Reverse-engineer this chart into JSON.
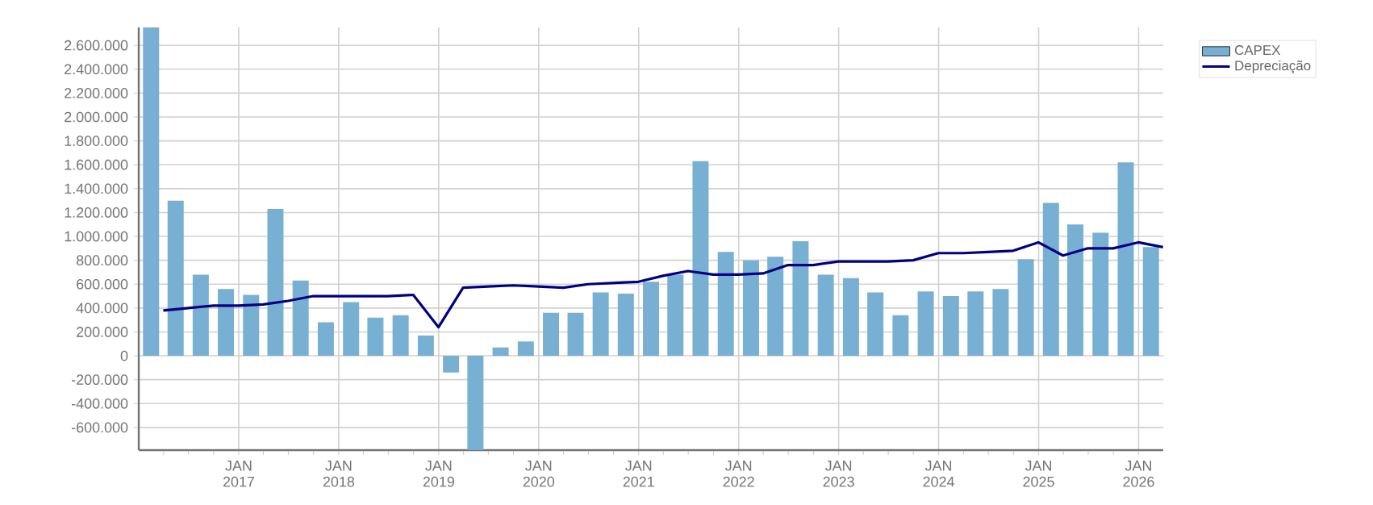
{
  "chart_data": {
    "type": "bar",
    "xlim": [
      "2016-01-01",
      "2026-04-01"
    ],
    "ylim": [
      -790000,
      2750000
    ],
    "yticks": [
      {
        "value": -600000,
        "label": "-600.000"
      },
      {
        "value": -400000,
        "label": "-400.000"
      },
      {
        "value": -200000,
        "label": "-200.000"
      },
      {
        "value": 0,
        "label": "0"
      },
      {
        "value": 200000,
        "label": "200.000"
      },
      {
        "value": 400000,
        "label": "400.000"
      },
      {
        "value": 600000,
        "label": "600.000"
      },
      {
        "value": 800000,
        "label": "800.000"
      },
      {
        "value": 1000000,
        "label": "1.000.000"
      },
      {
        "value": 1200000,
        "label": "1.200.000"
      },
      {
        "value": 1400000,
        "label": "1.400.000"
      },
      {
        "value": 1600000,
        "label": "1.600.000"
      },
      {
        "value": 1800000,
        "label": "1.800.000"
      },
      {
        "value": 2000000,
        "label": "2.000.000"
      },
      {
        "value": 2200000,
        "label": "2.200.000"
      },
      {
        "value": 2400000,
        "label": "2.400.000"
      },
      {
        "value": 2600000,
        "label": "2.600.000"
      }
    ],
    "xticks": [
      {
        "value": "2016-04-01",
        "label": null
      },
      {
        "value": "2016-07-01",
        "label": null
      },
      {
        "value": "2016-10-01",
        "label": null
      },
      {
        "value": "2017-01-01",
        "label": "JAN 2017"
      },
      {
        "value": "2017-04-01",
        "label": null
      },
      {
        "value": "2017-07-01",
        "label": null
      },
      {
        "value": "2017-10-01",
        "label": null
      },
      {
        "value": "2018-01-01",
        "label": "JAN 2018"
      },
      {
        "value": "2018-04-01",
        "label": null
      },
      {
        "value": "2018-07-01",
        "label": null
      },
      {
        "value": "2018-10-01",
        "label": null
      },
      {
        "value": "2019-01-01",
        "label": "JAN 2019"
      },
      {
        "value": "2019-04-01",
        "label": null
      },
      {
        "value": "2019-07-01",
        "label": null
      },
      {
        "value": "2019-10-01",
        "label": null
      },
      {
        "value": "2020-01-01",
        "label": "JAN 2020"
      },
      {
        "value": "2020-04-01",
        "label": null
      },
      {
        "value": "2020-07-01",
        "label": null
      },
      {
        "value": "2020-10-01",
        "label": null
      },
      {
        "value": "2021-01-01",
        "label": "JAN 2021"
      },
      {
        "value": "2021-04-01",
        "label": null
      },
      {
        "value": "2021-07-01",
        "label": null
      },
      {
        "value": "2021-10-01",
        "label": null
      },
      {
        "value": "2022-01-01",
        "label": "JAN 2022"
      },
      {
        "value": "2022-04-01",
        "label": null
      },
      {
        "value": "2022-07-01",
        "label": null
      },
      {
        "value": "2022-10-01",
        "label": null
      },
      {
        "value": "2023-01-01",
        "label": "JAN 2023"
      },
      {
        "value": "2023-04-01",
        "label": null
      },
      {
        "value": "2023-07-01",
        "label": null
      },
      {
        "value": "2023-10-01",
        "label": null
      },
      {
        "value": "2024-01-01",
        "label": "JAN 2024"
      },
      {
        "value": "2024-04-01",
        "label": null
      },
      {
        "value": "2024-07-01",
        "label": null
      },
      {
        "value": "2024-10-01",
        "label": null
      },
      {
        "value": "2025-01-01",
        "label": "JAN 2025"
      },
      {
        "value": "2025-04-01",
        "label": null
      },
      {
        "value": "2025-07-01",
        "label": null
      },
      {
        "value": "2025-10-01",
        "label": null
      },
      {
        "value": "2026-01-01",
        "label": "JAN 2026"
      }
    ],
    "grid": true,
    "legend": "top right",
    "series": [
      {
        "name": "CAPEX",
        "color": "#78b0d4",
        "x": [
          "2016-02-15",
          "2016-05-15",
          "2016-08-15",
          "2016-11-15",
          "2017-02-15",
          "2017-05-15",
          "2017-08-15",
          "2017-11-15",
          "2018-02-15",
          "2018-05-15",
          "2018-08-15",
          "2018-11-15",
          "2019-02-15",
          "2019-05-15",
          "2019-08-15",
          "2019-11-15",
          "2020-02-15",
          "2020-05-15",
          "2020-08-15",
          "2020-11-15",
          "2021-02-15",
          "2021-05-15",
          "2021-08-15",
          "2021-11-15",
          "2022-02-15",
          "2022-05-15",
          "2022-08-15",
          "2022-11-15",
          "2023-02-15",
          "2023-05-15",
          "2023-08-15",
          "2023-11-15",
          "2024-02-15",
          "2024-05-15",
          "2024-08-15",
          "2024-11-15",
          "2025-02-15",
          "2025-05-15",
          "2025-08-15",
          "2025-11-15",
          "2026-02-15"
        ],
        "values": [
          2750000,
          1300000,
          680000,
          560000,
          510000,
          1230000,
          630000,
          280000,
          450000,
          320000,
          340000,
          170000,
          -140000,
          -790000,
          70000,
          120000,
          360000,
          360000,
          530000,
          520000,
          620000,
          680000,
          1630000,
          870000,
          800000,
          830000,
          960000,
          680000,
          650000,
          530000,
          340000,
          540000,
          500000,
          540000,
          560000,
          810000,
          1280000,
          1100000,
          1030000,
          1620000,
          910000
        ]
      },
      {
        "name": "Depreciação",
        "type": "line",
        "color": "#000080",
        "marker": "none",
        "line_style": "solid",
        "x": [
          "2016-03-31",
          "2016-06-30",
          "2016-09-30",
          "2016-12-31",
          "2017-03-31",
          "2017-06-30",
          "2017-09-30",
          "2017-12-31",
          "2018-03-31",
          "2018-06-30",
          "2018-09-30",
          "2018-12-31",
          "2019-03-31",
          "2019-06-30",
          "2019-09-30",
          "2019-12-31",
          "2020-03-31",
          "2020-06-30",
          "2020-09-30",
          "2020-12-31",
          "2021-03-31",
          "2021-06-30",
          "2021-09-30",
          "2021-12-31",
          "2022-03-31",
          "2022-06-30",
          "2022-09-30",
          "2022-12-31",
          "2023-03-31",
          "2023-06-30",
          "2023-09-30",
          "2023-12-31",
          "2024-03-31",
          "2024-06-30",
          "2024-09-30",
          "2024-12-31",
          "2025-03-31",
          "2025-06-30",
          "2025-09-30",
          "2025-12-31",
          "2026-03-31"
        ],
        "values": [
          380000,
          400000,
          420000,
          420000,
          430000,
          460000,
          500000,
          500000,
          500000,
          500000,
          510000,
          240000,
          570000,
          580000,
          590000,
          580000,
          570000,
          600000,
          610000,
          620000,
          670000,
          710000,
          680000,
          680000,
          690000,
          760000,
          760000,
          790000,
          790000,
          790000,
          800000,
          860000,
          860000,
          870000,
          880000,
          950000,
          840000,
          900000,
          900000,
          950000,
          910000
        ]
      }
    ]
  }
}
